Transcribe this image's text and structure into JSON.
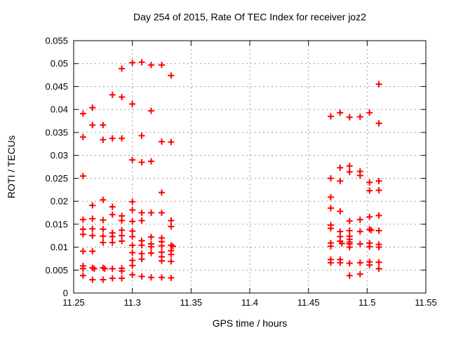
{
  "title": "Day 254 of 2015, Rate Of TEC Index for receiver joz2",
  "chart_data": {
    "type": "scatter",
    "title": "Day 254 of 2015, Rate Of TEC Index for receiver joz2",
    "xlabel": "GPS time / hours",
    "ylabel": "ROTI / TECUs",
    "xlim": [
      11.25,
      11.55
    ],
    "ylim": [
      0,
      0.055
    ],
    "x_tick_labels": [
      "11.25",
      "11.3",
      "11.35",
      "11.4",
      "11.45",
      "11.5",
      "11.55"
    ],
    "x_tick_values": [
      11.25,
      11.3,
      11.35,
      11.4,
      11.45,
      11.5,
      11.55
    ],
    "y_tick_labels": [
      "0",
      "0.005",
      "0.01",
      "0.015",
      "0.02",
      "0.025",
      "0.03",
      "0.035",
      "0.04",
      "0.045",
      "0.05",
      "0.055"
    ],
    "y_tick_values": [
      0,
      0.005,
      0.01,
      0.015,
      0.02,
      0.025,
      0.03,
      0.035,
      0.04,
      0.045,
      0.05,
      0.055
    ],
    "grid": true,
    "legend_position": "none",
    "marker_shape": "plus",
    "marker_color": "#ff0000",
    "grid_color": "#9c9c9c",
    "frame_color": "#000000",
    "series": [
      {
        "name": "ROTI",
        "points": [
          [
            11.258,
            0.0391
          ],
          [
            11.258,
            0.034
          ],
          [
            11.258,
            0.0255
          ],
          [
            11.258,
            0.016
          ],
          [
            11.258,
            0.0139
          ],
          [
            11.258,
            0.0128
          ],
          [
            11.258,
            0.0091
          ],
          [
            11.258,
            0.0059
          ],
          [
            11.258,
            0.0053
          ],
          [
            11.258,
            0.0038
          ],
          [
            11.266,
            0.0404
          ],
          [
            11.266,
            0.0366
          ],
          [
            11.266,
            0.0191
          ],
          [
            11.266,
            0.0162
          ],
          [
            11.266,
            0.014
          ],
          [
            11.266,
            0.0125
          ],
          [
            11.266,
            0.0091
          ],
          [
            11.266,
            0.0055
          ],
          [
            11.2675,
            0.0053
          ],
          [
            11.266,
            0.0029
          ],
          [
            11.275,
            0.0366
          ],
          [
            11.275,
            0.0334
          ],
          [
            11.275,
            0.0203
          ],
          [
            11.275,
            0.0159
          ],
          [
            11.275,
            0.0139
          ],
          [
            11.275,
            0.0124
          ],
          [
            11.275,
            0.011
          ],
          [
            11.275,
            0.0055
          ],
          [
            11.2765,
            0.0053
          ],
          [
            11.275,
            0.0029
          ],
          [
            11.283,
            0.0432
          ],
          [
            11.283,
            0.0337
          ],
          [
            11.283,
            0.0188
          ],
          [
            11.283,
            0.0171
          ],
          [
            11.283,
            0.0131
          ],
          [
            11.283,
            0.0123
          ],
          [
            11.283,
            0.011
          ],
          [
            11.283,
            0.0053
          ],
          [
            11.283,
            0.0032
          ],
          [
            11.291,
            0.0489
          ],
          [
            11.291,
            0.0427
          ],
          [
            11.291,
            0.0337
          ],
          [
            11.291,
            0.0168
          ],
          [
            11.291,
            0.0158
          ],
          [
            11.291,
            0.0137
          ],
          [
            11.291,
            0.0125
          ],
          [
            11.291,
            0.0113
          ],
          [
            11.291,
            0.0054
          ],
          [
            11.291,
            0.0048
          ],
          [
            11.291,
            0.0032
          ],
          [
            11.3,
            0.0502
          ],
          [
            11.3,
            0.0412
          ],
          [
            11.3,
            0.029
          ],
          [
            11.3,
            0.0199
          ],
          [
            11.3,
            0.0181
          ],
          [
            11.3,
            0.0156
          ],
          [
            11.3,
            0.0135
          ],
          [
            11.3,
            0.0123
          ],
          [
            11.3,
            0.0104
          ],
          [
            11.3,
            0.0088
          ],
          [
            11.3,
            0.0071
          ],
          [
            11.3,
            0.006
          ],
          [
            11.3,
            0.004
          ],
          [
            11.308,
            0.0503
          ],
          [
            11.308,
            0.0343
          ],
          [
            11.308,
            0.0285
          ],
          [
            11.308,
            0.0175
          ],
          [
            11.308,
            0.0158
          ],
          [
            11.308,
            0.0114
          ],
          [
            11.308,
            0.0104
          ],
          [
            11.308,
            0.0086
          ],
          [
            11.308,
            0.0074
          ],
          [
            11.308,
            0.0036
          ],
          [
            11.316,
            0.0497
          ],
          [
            11.316,
            0.0397
          ],
          [
            11.316,
            0.0287
          ],
          [
            11.316,
            0.0175
          ],
          [
            11.316,
            0.0122
          ],
          [
            11.316,
            0.0107
          ],
          [
            11.316,
            0.0101
          ],
          [
            11.316,
            0.0087
          ],
          [
            11.316,
            0.0034
          ],
          [
            11.325,
            0.0497
          ],
          [
            11.325,
            0.033
          ],
          [
            11.325,
            0.0219
          ],
          [
            11.325,
            0.0175
          ],
          [
            11.325,
            0.012
          ],
          [
            11.325,
            0.0112
          ],
          [
            11.325,
            0.0103
          ],
          [
            11.325,
            0.0089
          ],
          [
            11.325,
            0.0079
          ],
          [
            11.325,
            0.007
          ],
          [
            11.325,
            0.0034
          ],
          [
            11.333,
            0.0474
          ],
          [
            11.333,
            0.0329
          ],
          [
            11.333,
            0.0158
          ],
          [
            11.333,
            0.0145
          ],
          [
            11.333,
            0.0104
          ],
          [
            11.3345,
            0.0102
          ],
          [
            11.333,
            0.0092
          ],
          [
            11.333,
            0.0084
          ],
          [
            11.333,
            0.0069
          ],
          [
            11.333,
            0.0033
          ],
          [
            11.469,
            0.0385
          ],
          [
            11.469,
            0.025
          ],
          [
            11.469,
            0.0209
          ],
          [
            11.469,
            0.0185
          ],
          [
            11.469,
            0.0148
          ],
          [
            11.469,
            0.0141
          ],
          [
            11.469,
            0.0109
          ],
          [
            11.469,
            0.0102
          ],
          [
            11.469,
            0.0073
          ],
          [
            11.469,
            0.0066
          ],
          [
            11.477,
            0.0393
          ],
          [
            11.477,
            0.0273
          ],
          [
            11.477,
            0.0244
          ],
          [
            11.477,
            0.0178
          ],
          [
            11.477,
            0.0134
          ],
          [
            11.477,
            0.0123
          ],
          [
            11.477,
            0.0113
          ],
          [
            11.4785,
            0.0108
          ],
          [
            11.477,
            0.0073
          ],
          [
            11.477,
            0.0066
          ],
          [
            11.485,
            0.0383
          ],
          [
            11.485,
            0.0277
          ],
          [
            11.485,
            0.0264
          ],
          [
            11.485,
            0.0157
          ],
          [
            11.485,
            0.0136
          ],
          [
            11.485,
            0.0124
          ],
          [
            11.485,
            0.0117
          ],
          [
            11.485,
            0.0111
          ],
          [
            11.485,
            0.0107
          ],
          [
            11.485,
            0.01
          ],
          [
            11.485,
            0.0065
          ],
          [
            11.485,
            0.0038
          ],
          [
            11.494,
            0.0384
          ],
          [
            11.494,
            0.0265
          ],
          [
            11.494,
            0.0256
          ],
          [
            11.494,
            0.016
          ],
          [
            11.494,
            0.0134
          ],
          [
            11.494,
            0.0107
          ],
          [
            11.494,
            0.0066
          ],
          [
            11.494,
            0.0041
          ],
          [
            11.502,
            0.0393
          ],
          [
            11.502,
            0.0241
          ],
          [
            11.502,
            0.0223
          ],
          [
            11.502,
            0.0166
          ],
          [
            11.502,
            0.0139
          ],
          [
            11.5035,
            0.0137
          ],
          [
            11.502,
            0.0109
          ],
          [
            11.502,
            0.0101
          ],
          [
            11.502,
            0.0068
          ],
          [
            11.502,
            0.0061
          ],
          [
            11.51,
            0.0455
          ],
          [
            11.51,
            0.037
          ],
          [
            11.51,
            0.0244
          ],
          [
            11.51,
            0.0224
          ],
          [
            11.51,
            0.0169
          ],
          [
            11.51,
            0.0136
          ],
          [
            11.51,
            0.0106
          ],
          [
            11.51,
            0.01
          ],
          [
            11.51,
            0.0067
          ],
          [
            11.51,
            0.0053
          ]
        ]
      }
    ]
  }
}
